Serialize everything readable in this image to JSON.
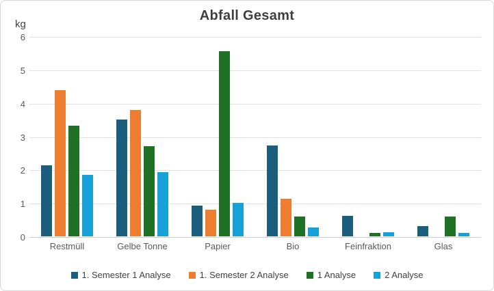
{
  "frame": {
    "background": "#ffffff",
    "border_color": "#d6d6d6",
    "gridline_color": "#e1e1e1"
  },
  "chart_data": {
    "type": "bar",
    "title": "Abfall Gesamt",
    "ylabel": "kg",
    "xlabel": "",
    "categories": [
      "Restmüll",
      "Gelbe Tonne",
      "Papier",
      "Bio",
      "Feinfraktion",
      "Glas"
    ],
    "series": [
      {
        "name": "1. Semester 1 Analyse",
        "color": "#1b5e7d",
        "values": [
          2.12,
          3.5,
          0.93,
          2.72,
          0.62,
          0.3
        ]
      },
      {
        "name": "1. Semester 2 Analyse",
        "color": "#ed7d31",
        "values": [
          4.38,
          3.79,
          0.8,
          1.12,
          0,
          0
        ]
      },
      {
        "name": "1 Analyse",
        "color": "#1e7125",
        "values": [
          3.32,
          2.7,
          5.55,
          0.6,
          0.1,
          0.6
        ]
      },
      {
        "name": "2 Analyse",
        "color": "#18a1d9",
        "values": [
          1.84,
          1.93,
          1.0,
          0.27,
          0.13,
          0.1
        ]
      }
    ],
    "ylim": [
      0,
      6
    ],
    "y_ticks": [
      6,
      5,
      4,
      3,
      2,
      1,
      0
    ],
    "grid": true,
    "legend_position": "bottom"
  }
}
